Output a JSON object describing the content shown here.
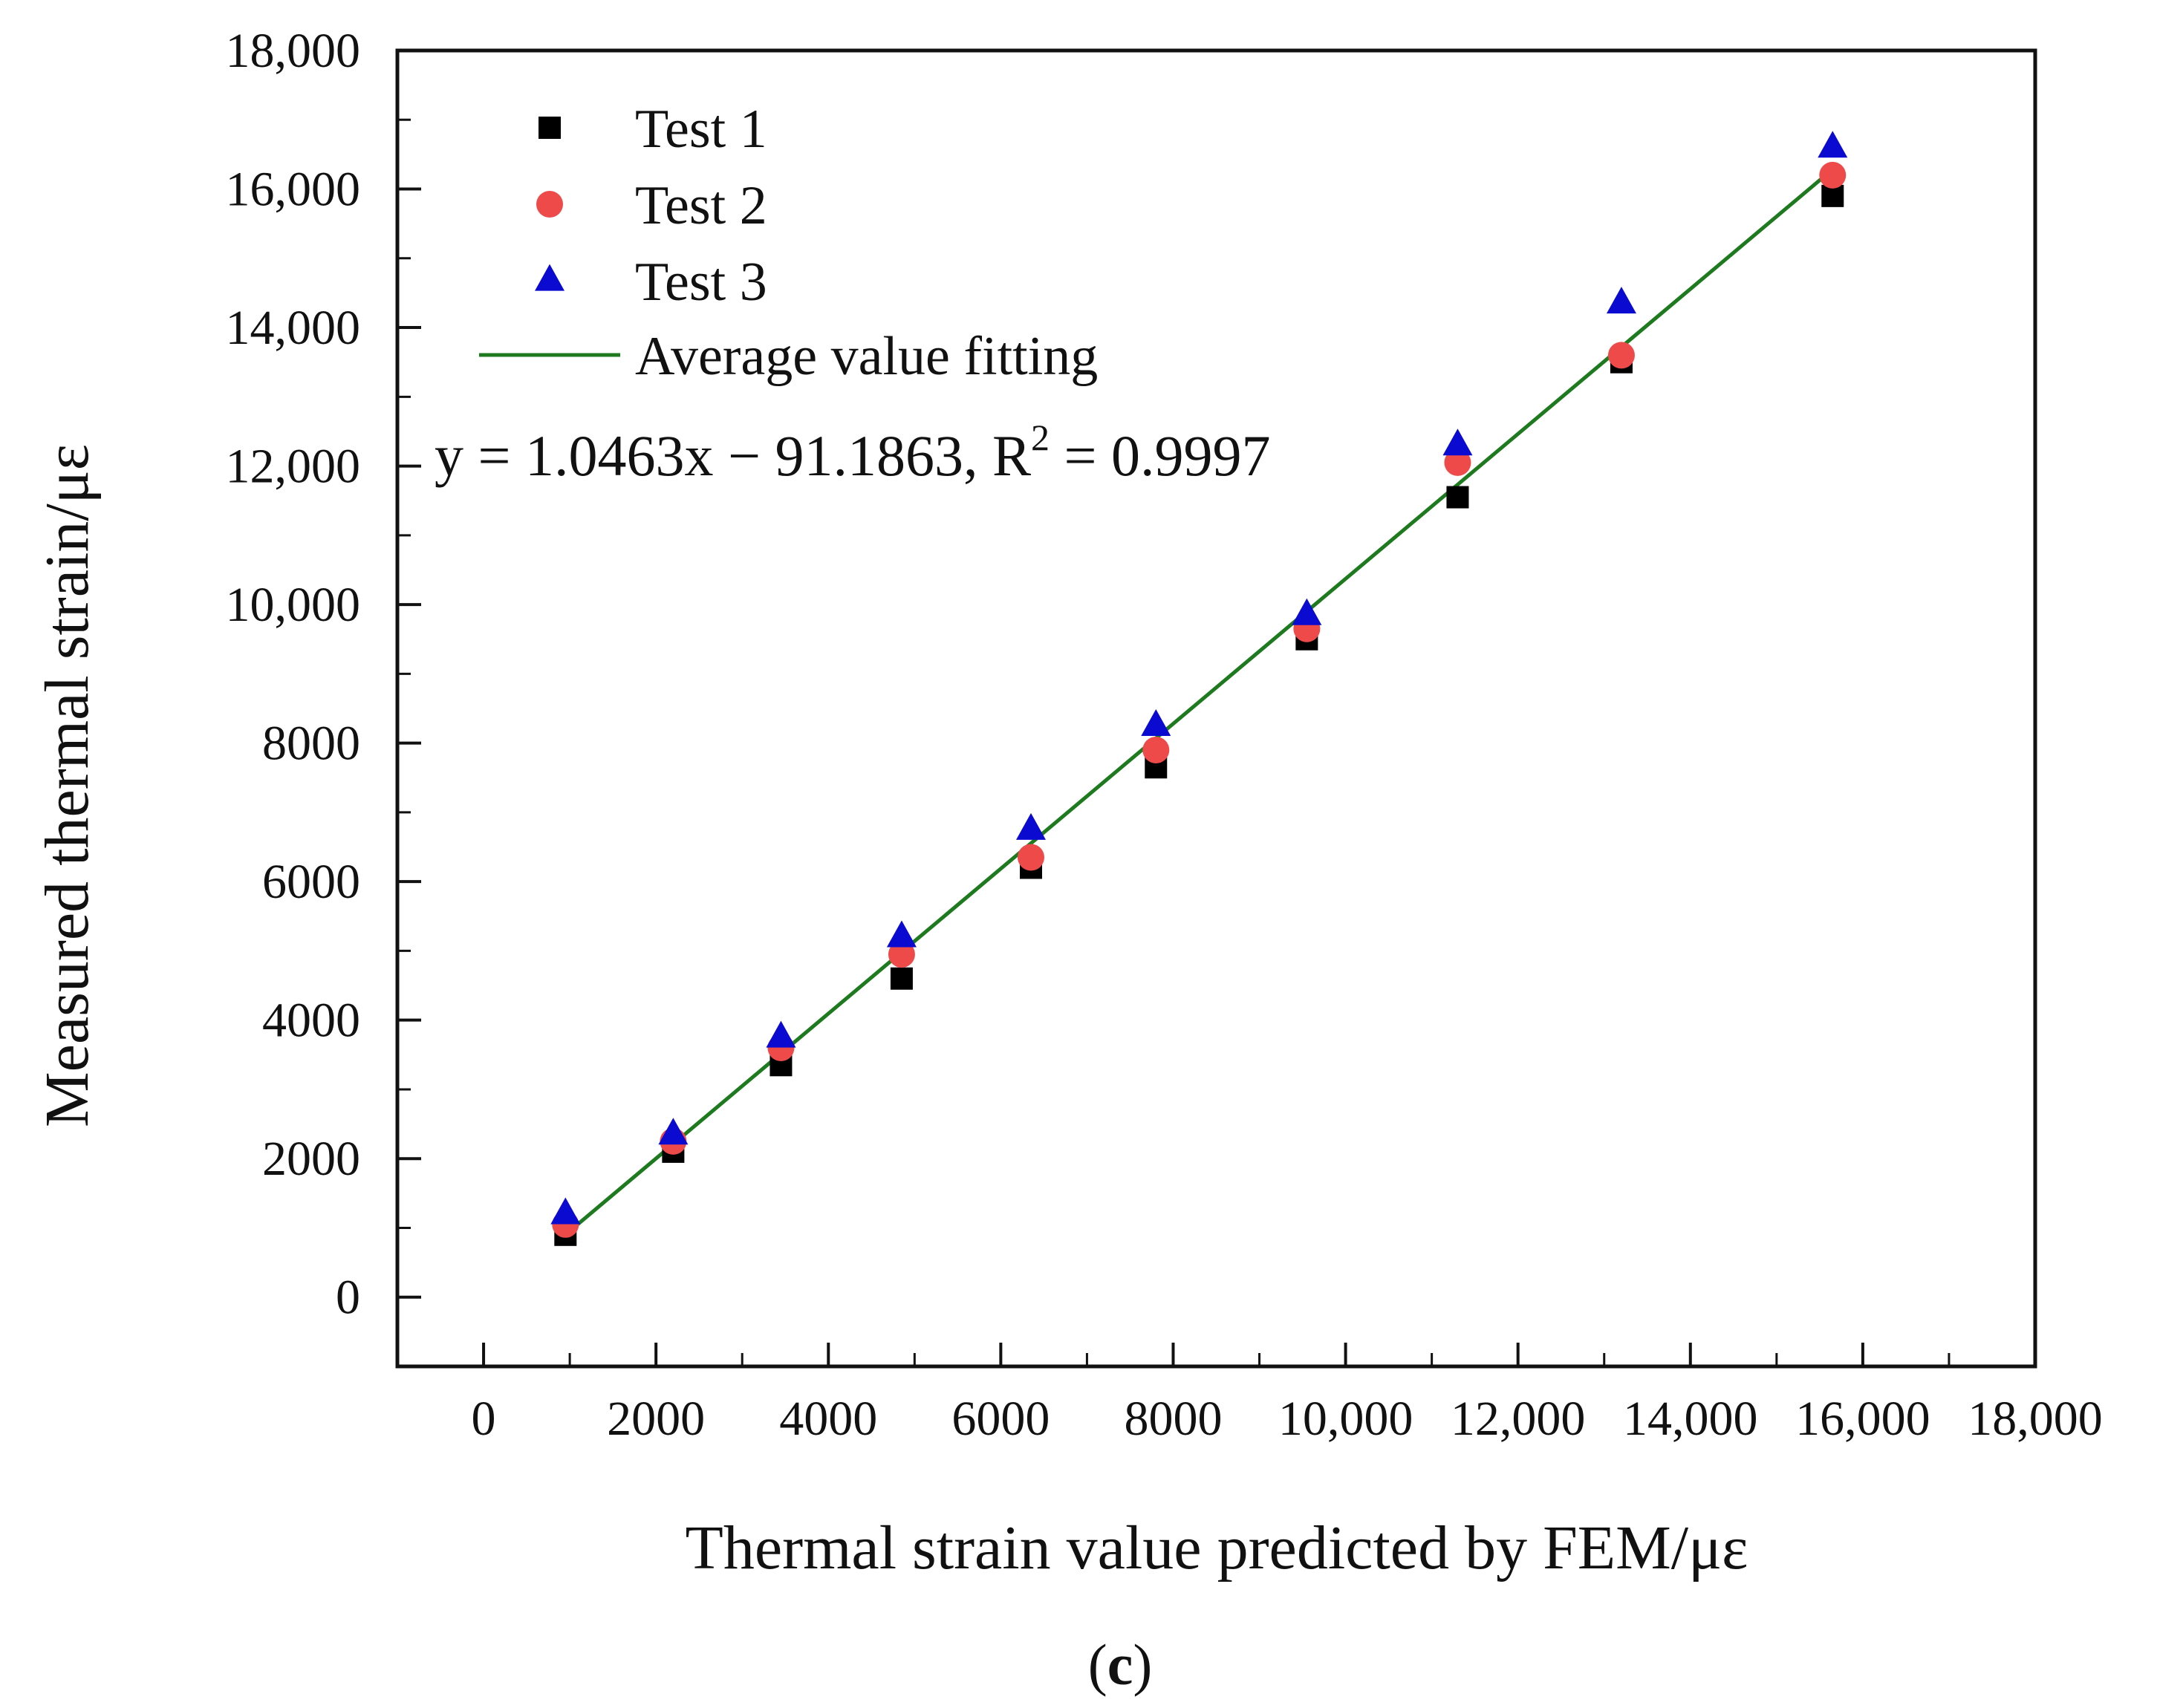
{
  "chart_data": {
    "type": "scatter",
    "panel_label": "(c)",
    "panel_label_parts": {
      "open": "(",
      "letter": "c",
      "close": ")"
    },
    "xlabel": "Thermal strain value predicted by FEM/με",
    "ylabel": "Measured  thermal strain/με",
    "xlim": [
      -1000,
      18000
    ],
    "ylim": [
      -1000,
      18000
    ],
    "x_ticks": [
      0,
      2000,
      4000,
      6000,
      8000,
      10000,
      12000,
      14000,
      16000,
      18000
    ],
    "x_tick_labels": [
      "0",
      "2000",
      "4000",
      "6000",
      "8000",
      "10,000",
      "12,000",
      "14,000",
      "16,000",
      "18,000"
    ],
    "y_ticks": [
      0,
      2000,
      4000,
      6000,
      8000,
      10000,
      12000,
      14000,
      16000,
      18000
    ],
    "y_tick_labels": [
      "0",
      "2000",
      "4000",
      "6000",
      "8000",
      "10,000",
      "12,000",
      "14,000",
      "16,000",
      "18,000"
    ],
    "x": [
      950,
      2200,
      3450,
      4850,
      6350,
      7800,
      9550,
      11300,
      13200,
      15650
    ],
    "series": [
      {
        "name": "Test 1",
        "marker": "square",
        "color": "#000000",
        "values": [
          900,
          2100,
          3350,
          4600,
          6200,
          7650,
          9500,
          11550,
          13500,
          15900
        ]
      },
      {
        "name": "Test 2",
        "marker": "circle",
        "color": "#ef4a4a",
        "values": [
          1050,
          2250,
          3600,
          4950,
          6350,
          7900,
          9650,
          12050,
          13600,
          16200
        ]
      },
      {
        "name": "Test 3",
        "marker": "triangle",
        "color": "#0a0ad0",
        "values": [
          1200,
          2350,
          3750,
          5200,
          6750,
          8250,
          9850,
          12300,
          14350,
          16600
        ]
      }
    ],
    "fit": {
      "name": "Average value fitting",
      "color": "#1e7a1e",
      "slope": 1.0463,
      "intercept": -91.1863,
      "x_range": [
        950,
        15650
      ],
      "equation_main": "y = 1.0463x − 91.1863, R",
      "equation_sup": "2",
      "equation_tail": " = 0.9997"
    },
    "legend_position": "top-left",
    "grid": false
  }
}
